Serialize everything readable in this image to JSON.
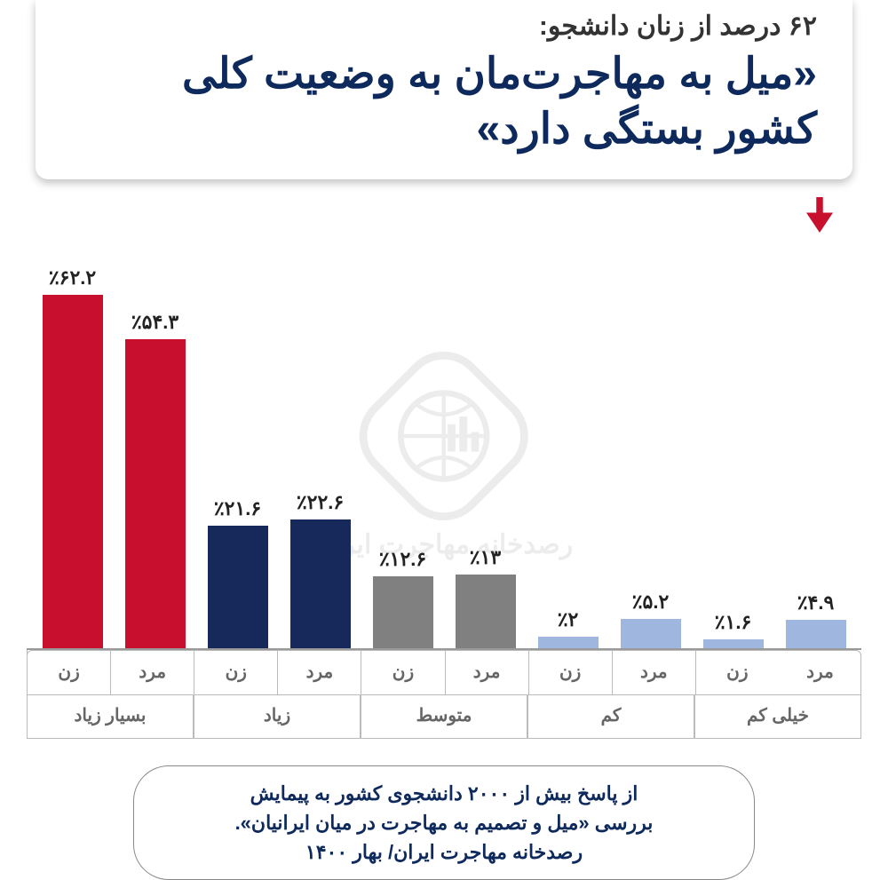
{
  "header": {
    "subtitle": "۶۲ درصد از زنان دانشجو:",
    "title": "«میل به مهاجرت‌مان به وضعیت کلی کشور بستگی دارد»",
    "title_color": "#0e2a5c",
    "subtitle_color": "#333333"
  },
  "chart": {
    "type": "bar",
    "ymax": 70,
    "background_color": "#ffffff",
    "axis_color": "#999999",
    "label_color": "#222222",
    "label_fontsize": 22,
    "gender_labels": {
      "male": "مرد",
      "female": "زن"
    },
    "gender_label_color": "#666666",
    "categories": [
      "خیلی کم",
      "کم",
      "متوسط",
      "زیاد",
      "بسیار زیاد"
    ],
    "category_label_color": "#666666",
    "groups_rtl": [
      {
        "category": "بسیار زیاد",
        "bars_rtl": [
          {
            "gender": "زن",
            "value": 62.2,
            "label": "٪۶۲.۲",
            "color": "#c8102e",
            "highlight": true
          },
          {
            "gender": "مرد",
            "value": 54.3,
            "label": "٪۵۴.۳",
            "color": "#c8102e"
          }
        ]
      },
      {
        "category": "زیاد",
        "bars_rtl": [
          {
            "gender": "زن",
            "value": 21.6,
            "label": "٪۲۱.۶",
            "color": "#17285a"
          },
          {
            "gender": "مرد",
            "value": 22.6,
            "label": "٪۲۲.۶",
            "color": "#17285a"
          }
        ]
      },
      {
        "category": "متوسط",
        "bars_rtl": [
          {
            "gender": "زن",
            "value": 12.6,
            "label": "٪۱۲.۶",
            "color": "#808080"
          },
          {
            "gender": "مرد",
            "value": 13.0,
            "label": "٪۱۳",
            "color": "#808080"
          }
        ]
      },
      {
        "category": "کم",
        "bars_rtl": [
          {
            "gender": "زن",
            "value": 2.0,
            "label": "٪۲",
            "color": "#9fb7de"
          },
          {
            "gender": "مرد",
            "value": 5.2,
            "label": "٪۵.۲",
            "color": "#9fb7de"
          }
        ]
      },
      {
        "category": "خیلی کم",
        "bars_rtl": [
          {
            "gender": "زن",
            "value": 1.6,
            "label": "٪۱.۶",
            "color": "#9fb7de"
          },
          {
            "gender": "مرد",
            "value": 4.9,
            "label": "٪۴.۹",
            "color": "#9fb7de"
          }
        ]
      }
    ],
    "arrow_color": "#c8102e"
  },
  "watermark": {
    "text": "رصدخانه مهاجرت ایران",
    "color": "#888888"
  },
  "footer": {
    "line1": "از پاسخ بیش از ۲۰۰۰ دانشجوی کشور به پیمایش",
    "line2": "بررسی «میل و تصمیم به مهاجرت در میان ایرانیان».",
    "line3": "رصدخانه مهاجرت ایران/ بهار ۱۴۰۰",
    "text_color": "#0e2a5c",
    "border_color": "#888888"
  }
}
